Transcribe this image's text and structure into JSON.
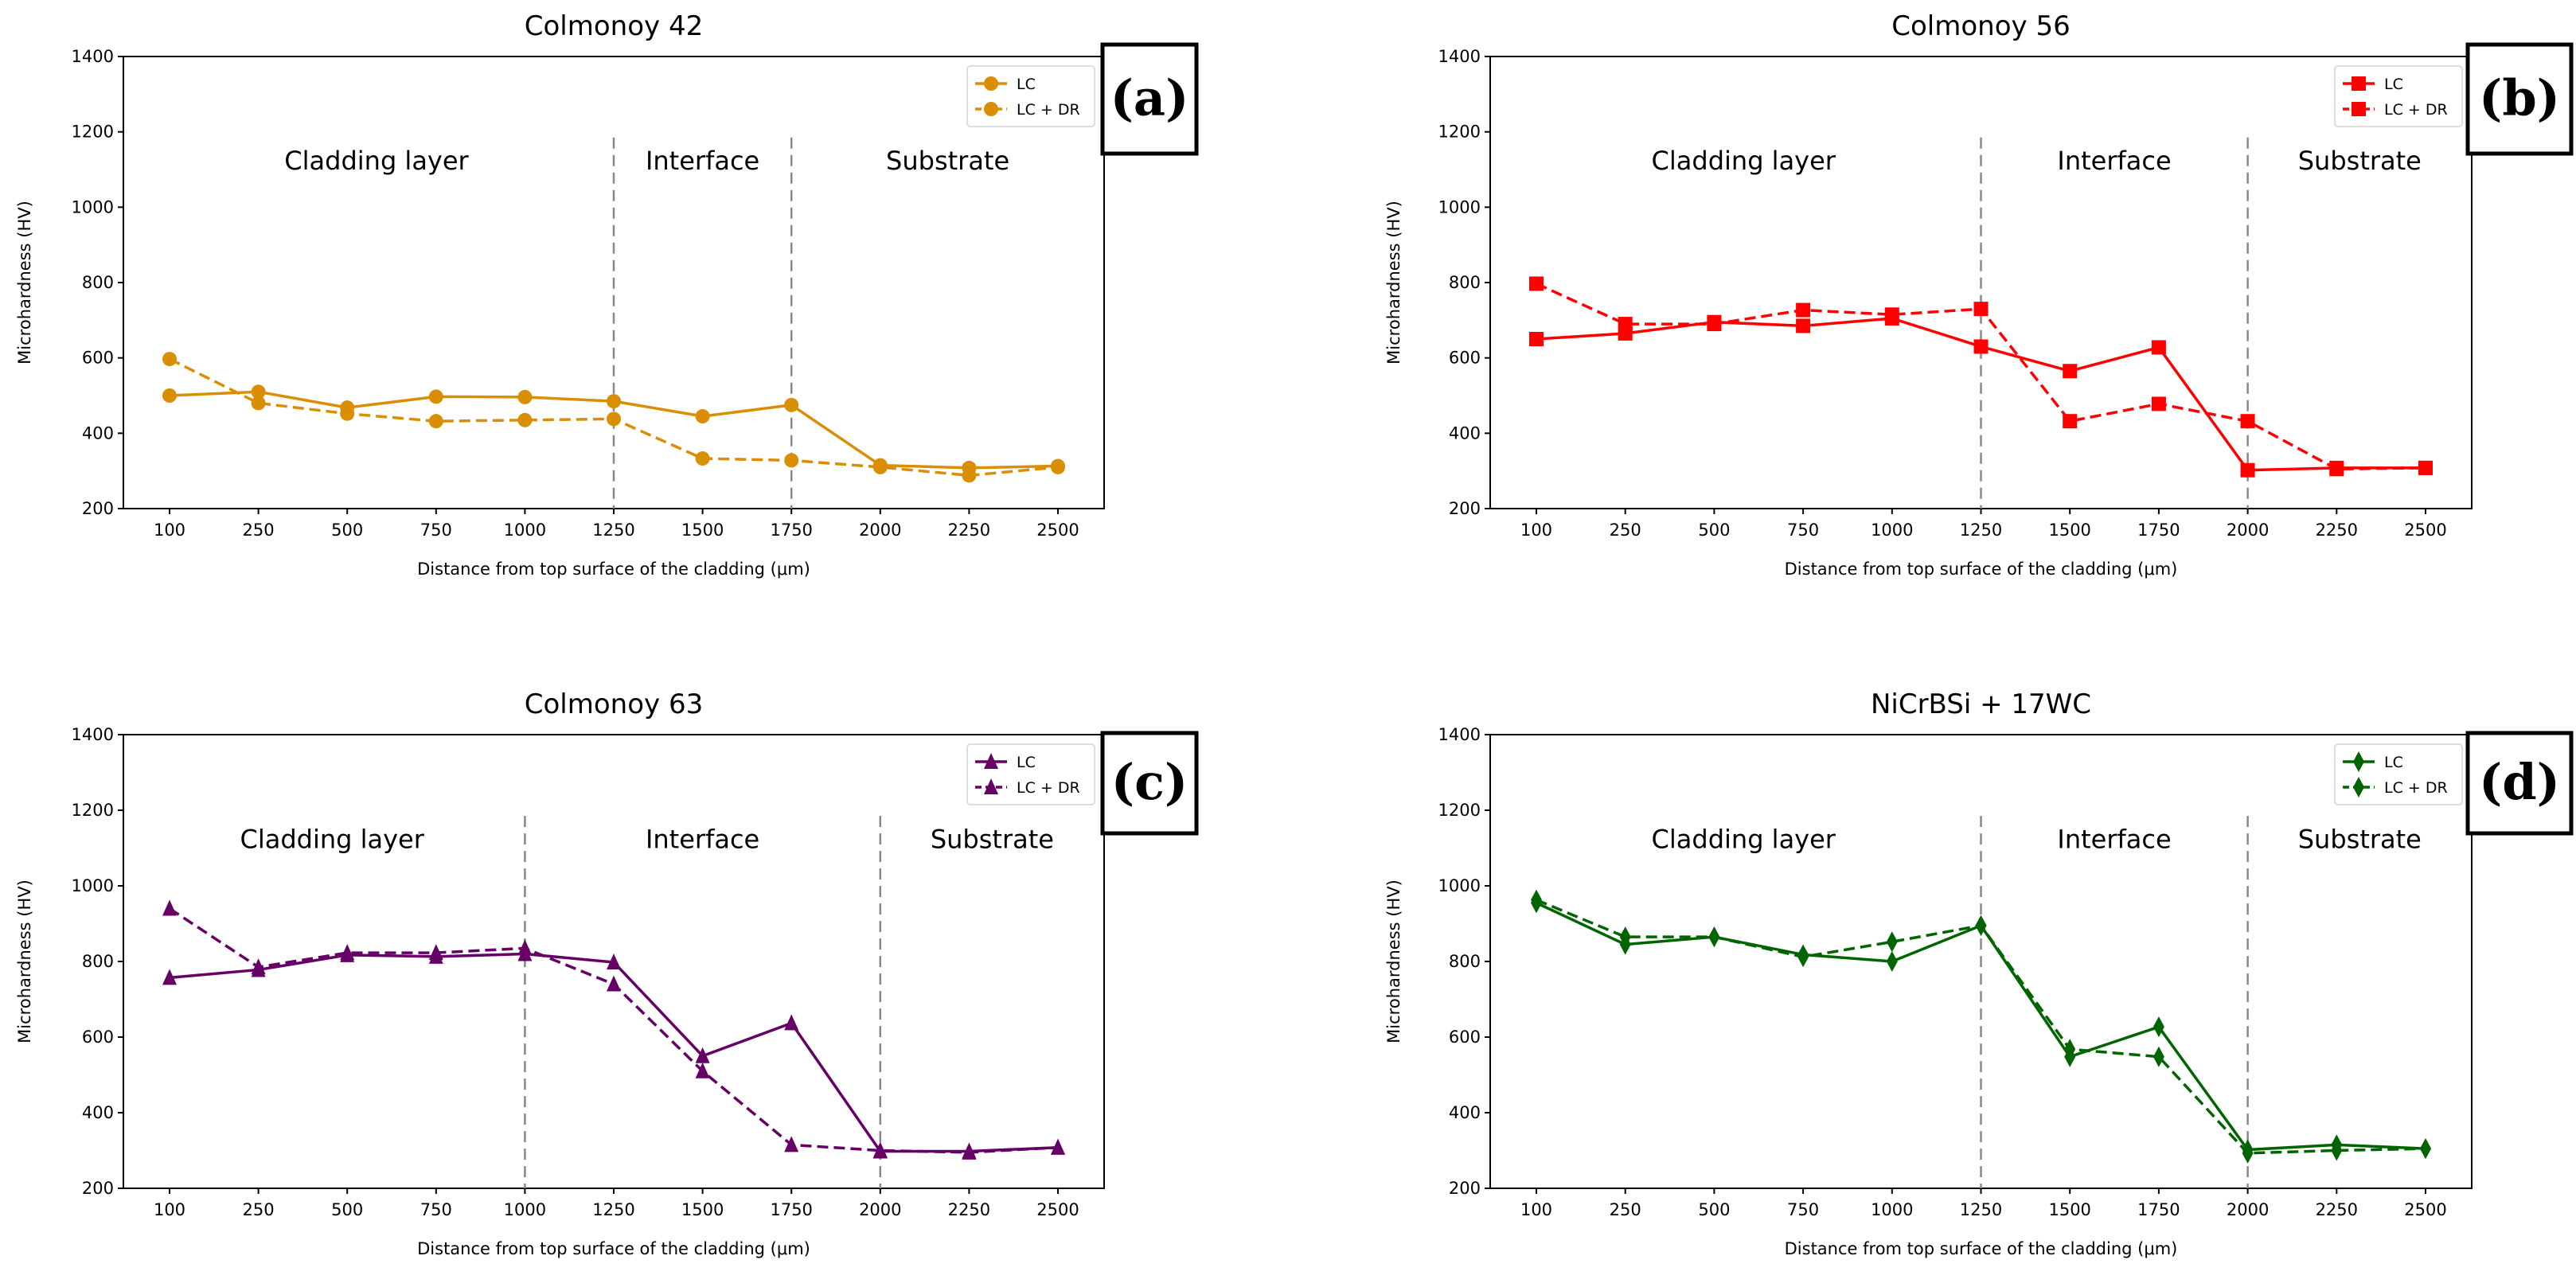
{
  "chart_data": [
    {
      "type": "line",
      "panel_label": "(a)",
      "title": "Colmonoy 42",
      "xlabel": "Distance from top surface of the cladding (μm)",
      "ylabel": "Microhardness (HV)",
      "categories": [
        "100",
        "250",
        "500",
        "750",
        "1000",
        "1250",
        "1500",
        "1750",
        "2000",
        "2250",
        "2500"
      ],
      "ylim": [
        200,
        1400
      ],
      "yticks": [
        200,
        400,
        600,
        800,
        1000,
        1200,
        1400
      ],
      "color": "#d98e04",
      "marker": "circle",
      "dividers_after_category": [
        "1250",
        "1750"
      ],
      "regions": [
        "Cladding layer",
        "Interface",
        "Substrate"
      ],
      "legend_position": "top-right",
      "series": [
        {
          "name": "LC",
          "style": "solid",
          "values": [
            500,
            510,
            468,
            497,
            496,
            485,
            445,
            475,
            315,
            308,
            313
          ]
        },
        {
          "name": "LC + DR",
          "style": "dashed",
          "values": [
            597,
            480,
            452,
            432,
            435,
            438,
            333,
            328,
            310,
            288,
            310
          ]
        }
      ]
    },
    {
      "type": "line",
      "panel_label": "(b)",
      "title": "Colmonoy 56",
      "xlabel": "Distance from top surface of the cladding (μm)",
      "ylabel": "Microhardness (HV)",
      "categories": [
        "100",
        "250",
        "500",
        "750",
        "1000",
        "1250",
        "1500",
        "1750",
        "2000",
        "2250",
        "2500"
      ],
      "ylim": [
        200,
        1400
      ],
      "yticks": [
        200,
        400,
        600,
        800,
        1000,
        1200,
        1400
      ],
      "color": "#ff0000",
      "marker": "square",
      "dividers_after_category": [
        "1250",
        "2000"
      ],
      "regions": [
        "Cladding layer",
        "Interface",
        "Substrate"
      ],
      "legend_position": "top-right",
      "series": [
        {
          "name": "LC",
          "style": "solid",
          "values": [
            650,
            665,
            695,
            685,
            705,
            630,
            565,
            628,
            302,
            308,
            308
          ]
        },
        {
          "name": "LC + DR",
          "style": "dashed",
          "values": [
            797,
            690,
            690,
            727,
            715,
            730,
            432,
            478,
            432,
            305,
            308
          ]
        }
      ]
    },
    {
      "type": "line",
      "panel_label": "(c)",
      "title": "Colmonoy 63",
      "xlabel": "Distance from top surface of the cladding (μm)",
      "ylabel": "Microhardness (HV)",
      "categories": [
        "100",
        "250",
        "500",
        "750",
        "1000",
        "1250",
        "1500",
        "1750",
        "2000",
        "2250",
        "2500"
      ],
      "ylim": [
        200,
        1400
      ],
      "yticks": [
        200,
        400,
        600,
        800,
        1000,
        1200,
        1400
      ],
      "color": "#660066",
      "marker": "triangle",
      "dividers_after_category": [
        "1000",
        "2000"
      ],
      "regions": [
        "Cladding layer",
        "Interface",
        "Substrate"
      ],
      "legend_position": "top-right",
      "series": [
        {
          "name": "LC",
          "style": "solid",
          "values": [
            757,
            778,
            817,
            813,
            820,
            798,
            550,
            637,
            298,
            298,
            308
          ]
        },
        {
          "name": "LC + DR",
          "style": "dashed",
          "values": [
            940,
            785,
            823,
            823,
            835,
            740,
            510,
            315,
            300,
            295,
            308
          ]
        }
      ]
    },
    {
      "type": "line",
      "panel_label": "(d)",
      "title": "NiCrBSi + 17WC",
      "xlabel": "Distance from top surface of the cladding (μm)",
      "ylabel": "Microhardness (HV)",
      "categories": [
        "100",
        "250",
        "500",
        "750",
        "1000",
        "1250",
        "1500",
        "1750",
        "2000",
        "2250",
        "2500"
      ],
      "ylim": [
        200,
        1400
      ],
      "yticks": [
        200,
        400,
        600,
        800,
        1000,
        1200,
        1400
      ],
      "color": "#006400",
      "marker": "diamond",
      "dividers_after_category": [
        "1250",
        "2000"
      ],
      "regions": [
        "Cladding layer",
        "Interface",
        "Substrate"
      ],
      "legend_position": "top-right",
      "series": [
        {
          "name": "LC",
          "style": "solid",
          "values": [
            955,
            845,
            865,
            818,
            800,
            895,
            548,
            627,
            302,
            315,
            305
          ]
        },
        {
          "name": "LC + DR",
          "style": "dashed",
          "values": [
            963,
            865,
            865,
            812,
            852,
            895,
            568,
            548,
            293,
            300,
            305
          ]
        }
      ]
    }
  ]
}
